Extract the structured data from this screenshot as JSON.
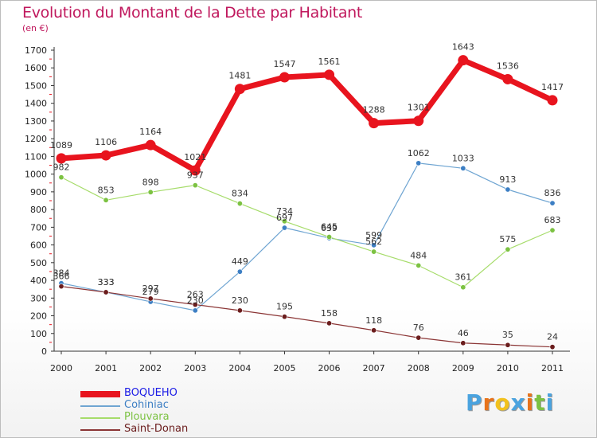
{
  "header": {
    "title": "Evolution du Montant de la Dette par Habitant",
    "unit": "(en €)"
  },
  "brand": {
    "text": "Proxiti",
    "letter_colors": [
      "#4aa3df",
      "#e8731a",
      "#f2c11d",
      "#4aa3df",
      "#e8731a",
      "#7cc242",
      "#4aa3df"
    ]
  },
  "chart_data": {
    "type": "line",
    "title": "Evolution du Montant de la Dette par Habitant",
    "ylabel": "(en €)",
    "xlabel": "",
    "x": [
      "2000",
      "2001",
      "2002",
      "2003",
      "2004",
      "2005",
      "2006",
      "2007",
      "2008",
      "2009",
      "2010",
      "2011"
    ],
    "ylim": [
      0,
      1700
    ],
    "yticks": [
      0,
      100,
      200,
      300,
      400,
      500,
      600,
      700,
      800,
      900,
      1000,
      1100,
      1200,
      1300,
      1400,
      1500,
      1600,
      1700
    ],
    "legend_position": "bottom-left",
    "grid": false,
    "series": [
      {
        "name": "BOQUEHO",
        "color": "#e8141e",
        "marker": "#e8141e",
        "width": 7,
        "label_color": "#1a1ae6",
        "values": [
          1089,
          1106,
          1164,
          1021,
          1481,
          1547,
          1561,
          1288,
          1301,
          1643,
          1536,
          1417
        ]
      },
      {
        "name": "Cohiniac",
        "color": "#6fa5d2",
        "marker": "#3d7fc4",
        "width": 1.2,
        "label_color": "#3d7fc4",
        "values": [
          384,
          333,
          279,
          230,
          449,
          697,
          639,
          599,
          1062,
          1033,
          913,
          836
        ]
      },
      {
        "name": "Plouvara",
        "color": "#a6dc6a",
        "marker": "#7cc242",
        "width": 1.2,
        "label_color": "#7cc242",
        "values": [
          982,
          853,
          898,
          937,
          834,
          734,
          645,
          562,
          484,
          361,
          575,
          683
        ]
      },
      {
        "name": "Saint-Donan",
        "color": "#8b3535",
        "marker": "#6b1d1d",
        "width": 1.2,
        "label_color": "#6b1d1d",
        "values": [
          366,
          333,
          297,
          263,
          230,
          195,
          158,
          118,
          76,
          46,
          35,
          24
        ]
      }
    ]
  }
}
